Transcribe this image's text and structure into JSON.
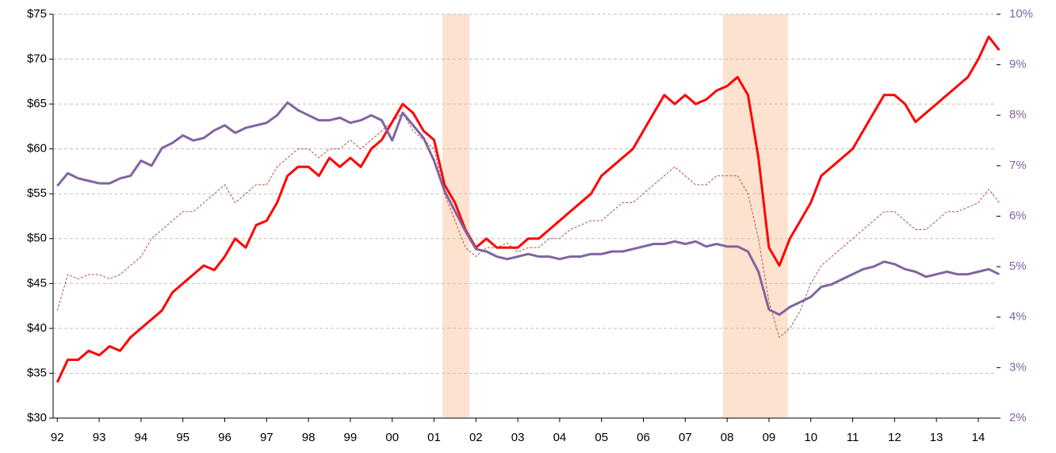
{
  "chart_data": {
    "type": "line",
    "x": [
      1992,
      1992.25,
      1992.5,
      1992.75,
      1993,
      1993.25,
      1993.5,
      1993.75,
      1994,
      1994.25,
      1994.5,
      1994.75,
      1995,
      1995.25,
      1995.5,
      1995.75,
      1996,
      1996.25,
      1996.5,
      1996.75,
      1997,
      1997.25,
      1997.5,
      1997.75,
      1998,
      1998.25,
      1998.5,
      1998.75,
      1999,
      1999.25,
      1999.5,
      1999.75,
      2000,
      2000.25,
      2000.5,
      2000.75,
      2001,
      2001.25,
      2001.5,
      2001.75,
      2002,
      2002.25,
      2002.5,
      2002.75,
      2003,
      2003.25,
      2003.5,
      2003.75,
      2004,
      2004.25,
      2004.5,
      2004.75,
      2005,
      2005.25,
      2005.5,
      2005.75,
      2006,
      2006.25,
      2006.5,
      2006.75,
      2007,
      2007.25,
      2007.5,
      2007.75,
      2008,
      2008.25,
      2008.5,
      2008.75,
      2009,
      2009.25,
      2009.5,
      2009.75,
      2010,
      2010.25,
      2010.5,
      2010.75,
      2011,
      2011.25,
      2011.5,
      2011.75,
      2012,
      2012.25,
      2012.5,
      2012.75,
      2013,
      2013.25,
      2013.5,
      2013.75,
      2014,
      2014.25,
      2014.5
    ],
    "series": [
      {
        "color": "#ff0000",
        "style": "solid",
        "values": [
          34,
          36.5,
          36.5,
          37.5,
          37,
          38,
          37.5,
          39,
          40,
          41,
          42,
          44,
          45,
          46,
          47,
          46.5,
          48,
          50,
          49,
          51.5,
          52,
          54,
          57,
          58,
          58,
          57,
          59,
          58,
          59,
          58,
          60,
          61,
          63,
          65,
          64,
          62,
          61,
          56,
          54,
          51,
          49,
          50,
          49,
          49,
          49,
          50,
          50,
          51,
          52,
          53,
          54,
          55,
          57,
          58,
          59,
          60,
          62,
          64,
          66,
          65,
          66,
          65,
          65.5,
          66.5,
          67,
          68,
          66,
          59,
          49,
          47,
          50,
          52,
          54,
          57,
          58,
          59,
          60,
          62,
          64,
          66,
          66,
          65,
          63,
          64,
          65,
          66,
          67,
          68,
          70,
          72.5,
          71
        ]
      },
      {
        "color": "#b5504a",
        "style": "dashed",
        "values": [
          42,
          46,
          45.5,
          46,
          46,
          45.5,
          46,
          47,
          48,
          50,
          51,
          52,
          53,
          53,
          54,
          55,
          56,
          54,
          55,
          56,
          56,
          58,
          59,
          60,
          60,
          59,
          60,
          60,
          61,
          60,
          61,
          62,
          63,
          64,
          62,
          61,
          60,
          55,
          52,
          49,
          48,
          49,
          49,
          49.5,
          48.5,
          49,
          49,
          50,
          50,
          51,
          51.5,
          52,
          52,
          53,
          54,
          54,
          55,
          56,
          57,
          58,
          57,
          56,
          56,
          57,
          57,
          57,
          55,
          50,
          43,
          39,
          40,
          42,
          45,
          47,
          48,
          49,
          50,
          51,
          52,
          53,
          53,
          52,
          51,
          51,
          52,
          53,
          53,
          53.5,
          54,
          55.5,
          54
        ]
      },
      {
        "color": "#8064a2",
        "style": "solid",
        "axis": "y2",
        "values": [
          6.6,
          6.85,
          6.75,
          6.7,
          6.65,
          6.65,
          6.75,
          6.8,
          7.1,
          7.0,
          7.35,
          7.45,
          7.6,
          7.5,
          7.55,
          7.7,
          7.8,
          7.65,
          7.75,
          7.8,
          7.85,
          8.0,
          8.25,
          8.1,
          8.0,
          7.9,
          7.9,
          7.95,
          7.85,
          7.9,
          8.0,
          7.9,
          7.5,
          8.05,
          7.8,
          7.55,
          7.1,
          6.5,
          6.1,
          5.7,
          5.35,
          5.3,
          5.2,
          5.15,
          5.2,
          5.25,
          5.2,
          5.2,
          5.15,
          5.2,
          5.2,
          5.25,
          5.25,
          5.3,
          5.3,
          5.35,
          5.4,
          5.45,
          5.45,
          5.5,
          5.45,
          5.5,
          5.4,
          5.45,
          5.4,
          5.4,
          5.3,
          4.9,
          4.15,
          4.05,
          4.2,
          4.3,
          4.4,
          4.6,
          4.65,
          4.75,
          4.85,
          4.95,
          5.0,
          5.1,
          5.05,
          4.95,
          4.9,
          4.8,
          4.85,
          4.9,
          4.85,
          4.85,
          4.9,
          4.95,
          4.85
        ]
      }
    ],
    "shaded_ranges": [
      [
        2001.2,
        2001.85
      ],
      [
        2007.9,
        2009.45
      ]
    ],
    "shade_color": "#fde3cf",
    "xlim": [
      1991.9,
      2014.55
    ],
    "xticks": [
      {
        "value": 1992,
        "label": "92"
      },
      {
        "value": 1993,
        "label": "93"
      },
      {
        "value": 1994,
        "label": "94"
      },
      {
        "value": 1995,
        "label": "95"
      },
      {
        "value": 1996,
        "label": "96"
      },
      {
        "value": 1997,
        "label": "97"
      },
      {
        "value": 1998,
        "label": "98"
      },
      {
        "value": 1999,
        "label": "99"
      },
      {
        "value": 2000,
        "label": "00"
      },
      {
        "value": 2001,
        "label": "01"
      },
      {
        "value": 2002,
        "label": "02"
      },
      {
        "value": 2003,
        "label": "03"
      },
      {
        "value": 2004,
        "label": "04"
      },
      {
        "value": 2005,
        "label": "05"
      },
      {
        "value": 2006,
        "label": "06"
      },
      {
        "value": 2007,
        "label": "07"
      },
      {
        "value": 2008,
        "label": "08"
      },
      {
        "value": 2009,
        "label": "09"
      },
      {
        "value": 2010,
        "label": "10"
      },
      {
        "value": 2011,
        "label": "11"
      },
      {
        "value": 2012,
        "label": "12"
      },
      {
        "value": 2013,
        "label": "13"
      },
      {
        "value": 2014,
        "label": "14"
      }
    ],
    "ylim": [
      30,
      75
    ],
    "yticks": [
      {
        "value": 30,
        "label": "$30"
      },
      {
        "value": 35,
        "label": "$35"
      },
      {
        "value": 40,
        "label": "$40"
      },
      {
        "value": 45,
        "label": "$45"
      },
      {
        "value": 50,
        "label": "$50"
      },
      {
        "value": 55,
        "label": "$55"
      },
      {
        "value": 60,
        "label": "$60"
      },
      {
        "value": 65,
        "label": "$65"
      },
      {
        "value": 70,
        "label": "$70"
      },
      {
        "value": 75,
        "label": "$75"
      }
    ],
    "y2lim": [
      2,
      10
    ],
    "y2ticks": [
      {
        "value": 2,
        "label": "2%"
      },
      {
        "value": 3,
        "label": "3%"
      },
      {
        "value": 4,
        "label": "4%"
      },
      {
        "value": 5,
        "label": "5%"
      },
      {
        "value": 6,
        "label": "6%"
      },
      {
        "value": 7,
        "label": "7%"
      },
      {
        "value": 8,
        "label": "8%"
      },
      {
        "value": 9,
        "label": "9%"
      },
      {
        "value": 10,
        "label": "10%"
      }
    ],
    "y2_label_color": "#8064a2",
    "grid": true
  }
}
